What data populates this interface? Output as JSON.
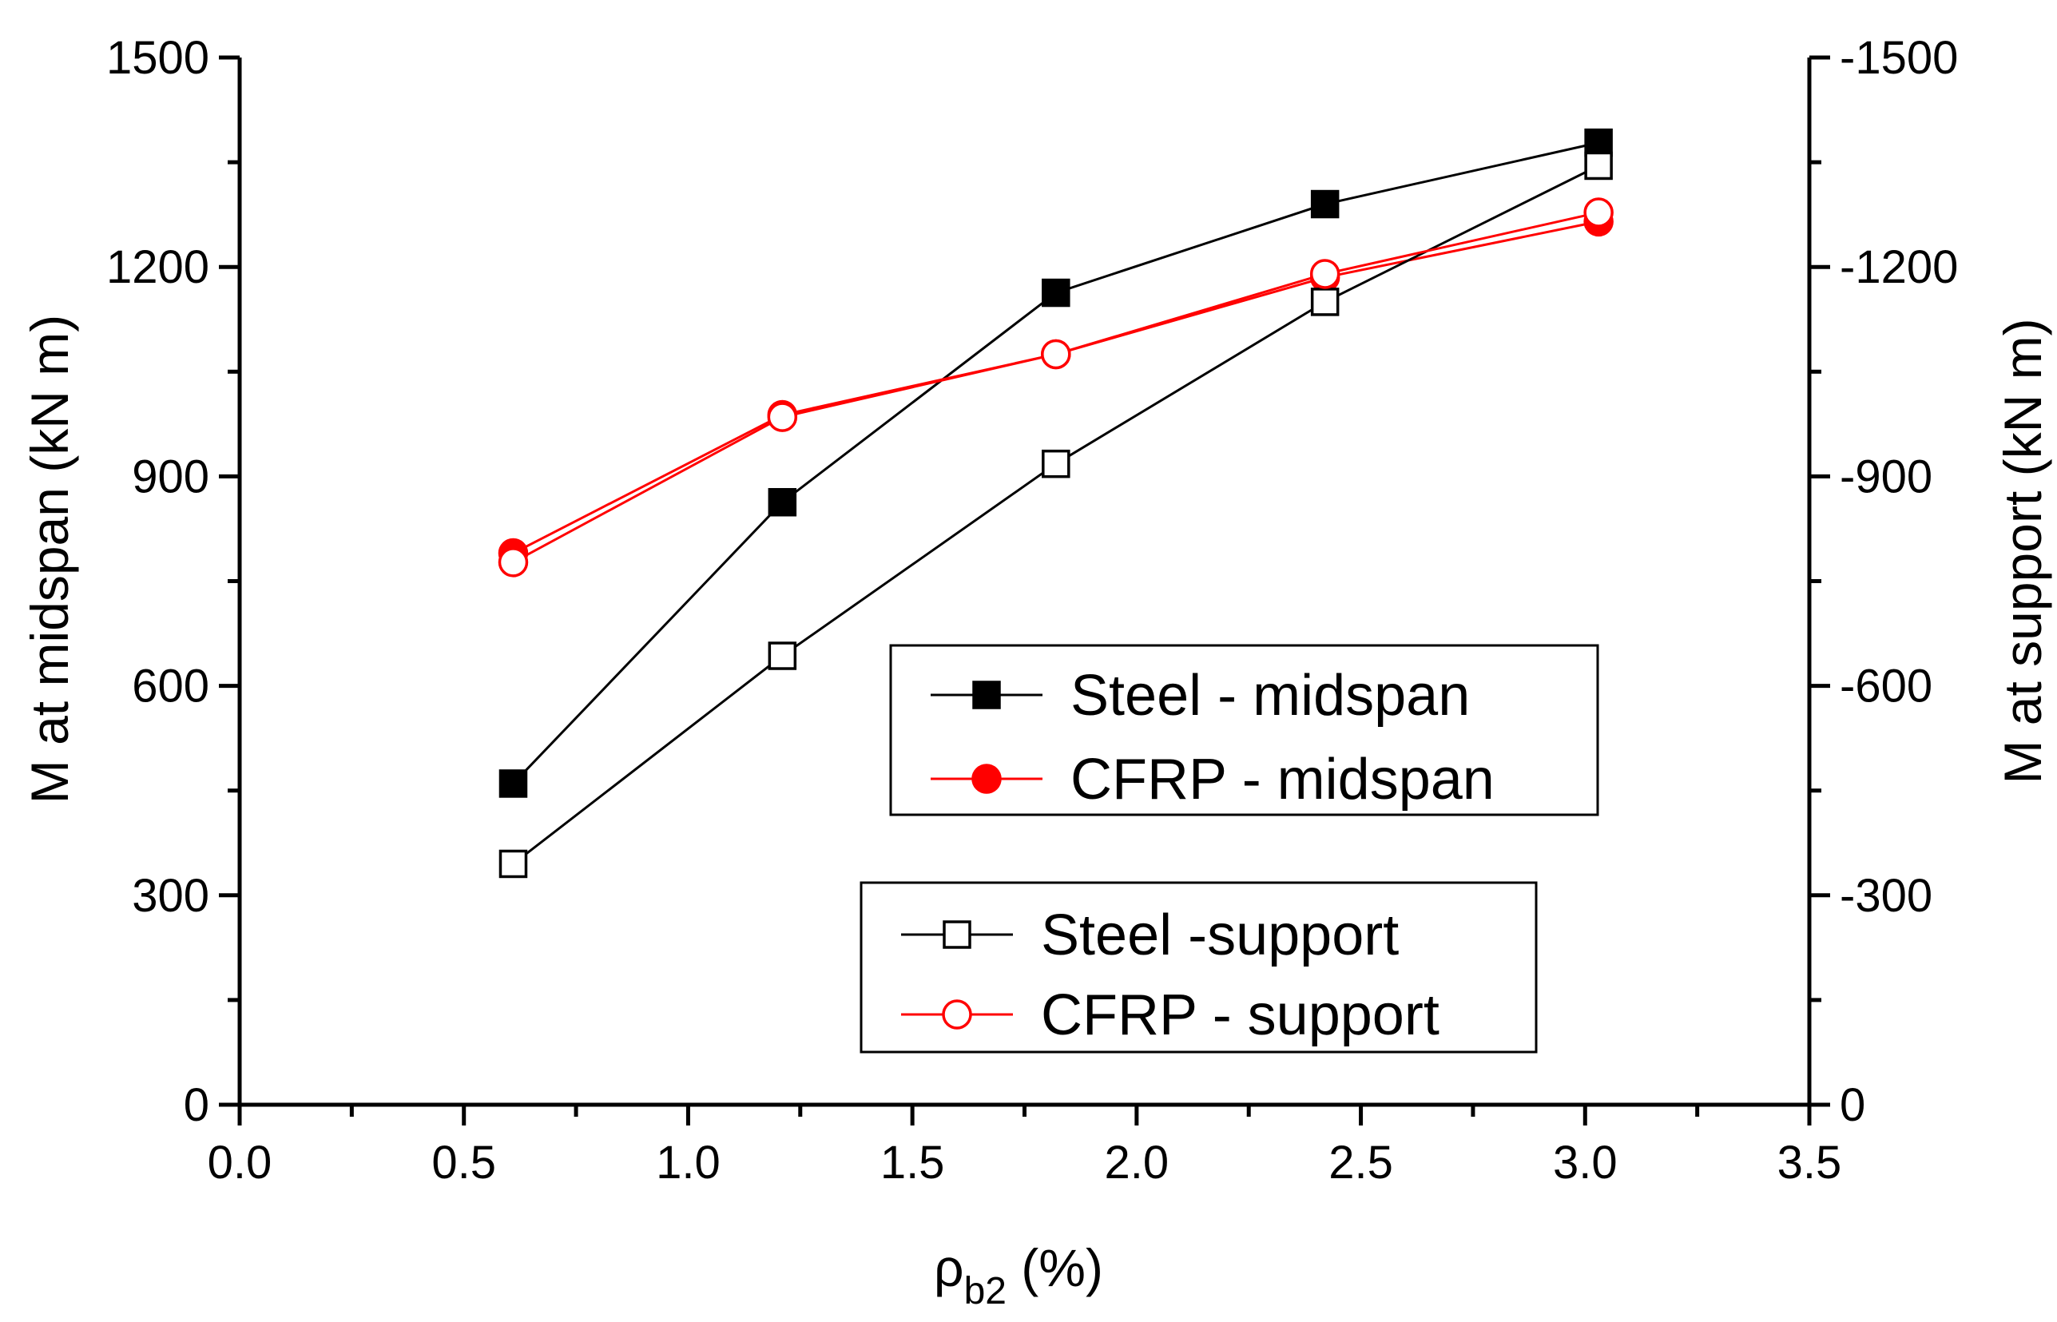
{
  "chart_data": {
    "type": "line",
    "xlabel": "ρ",
    "xlabel_sub": "b2",
    "xlabel_unit": " (%)",
    "ylabel": "M at midspan (kN m)",
    "ylabel_right": "M at support (kN m)",
    "xlim": [
      0.0,
      3.5
    ],
    "ylim": [
      0,
      1500
    ],
    "ylim_right": [
      0,
      -1500
    ],
    "x_ticks": [
      "0.0",
      "0.5",
      "1.0",
      "1.5",
      "2.0",
      "2.5",
      "3.0",
      "3.5"
    ],
    "y_ticks": [
      "0",
      "300",
      "600",
      "900",
      "1200",
      "1500"
    ],
    "y_ticks_right": [
      "0",
      "-300",
      "-600",
      "-900",
      "-1200",
      "-1500"
    ],
    "grid": false,
    "legend_groups": [
      {
        "placement": "center-right",
        "entries": [
          0,
          1
        ]
      },
      {
        "placement": "lower-right",
        "entries": [
          2,
          3
        ]
      }
    ],
    "series": [
      {
        "name": "Steel - midspan",
        "axis": "left",
        "color": "#000000",
        "marker": "square-filled",
        "x": [
          0.61,
          1.21,
          1.82,
          2.42,
          3.03
        ],
        "y": [
          460,
          863,
          1163,
          1290,
          1378
        ]
      },
      {
        "name": "CFRP - midspan",
        "axis": "left",
        "color": "#ff0000",
        "marker": "circle-filled",
        "x": [
          0.61,
          1.21,
          1.82,
          2.42,
          3.03
        ],
        "y": [
          790,
          988,
          1075,
          1185,
          1265
        ]
      },
      {
        "name": "Steel -support",
        "axis": "right",
        "color": "#000000",
        "marker": "square-open",
        "x": [
          0.61,
          1.21,
          1.82,
          2.42,
          3.03
        ],
        "y": [
          -345,
          -643,
          -918,
          -1150,
          -1345
        ]
      },
      {
        "name": "CFRP - support",
        "axis": "right",
        "color": "#ff0000",
        "marker": "circle-open",
        "x": [
          0.61,
          1.21,
          1.82,
          2.42,
          3.03
        ],
        "y": [
          -777,
          -985,
          -1075,
          -1190,
          -1278
        ]
      }
    ]
  }
}
